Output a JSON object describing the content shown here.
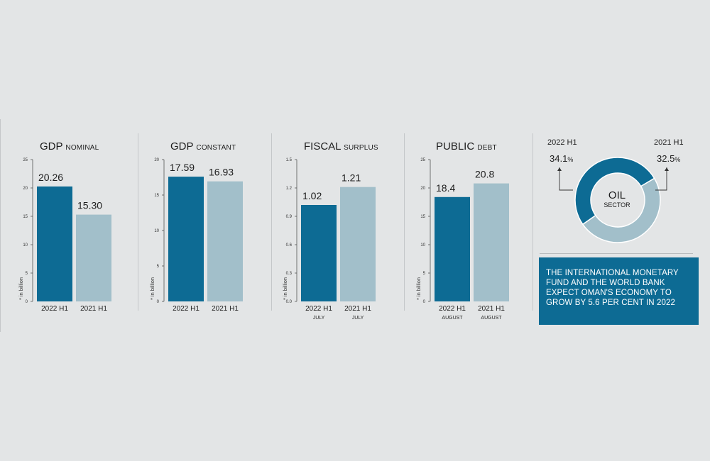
{
  "colors": {
    "primary": "#0d6b94",
    "secondary": "#a2bfca",
    "background": "#e3e5e6",
    "divider": "#c4c7c9"
  },
  "chart_data": [
    {
      "type": "bar",
      "title_main": "GDP",
      "title_small": "NOMINAL",
      "ylabel": "* in billion",
      "ylim": [
        0,
        25
      ],
      "yticks": [
        "0",
        "5",
        "10",
        "15",
        "20",
        "25"
      ],
      "categories": [
        "2022 H1",
        "2021 H1"
      ],
      "sublabels": [
        "",
        ""
      ],
      "values": [
        20.26,
        15.3
      ],
      "value_labels": [
        "20.26",
        "15.30"
      ]
    },
    {
      "type": "bar",
      "title_main": "GDP",
      "title_small": "CONSTANT",
      "ylabel": "* in billion",
      "ylim": [
        0,
        20
      ],
      "yticks": [
        "0",
        "5",
        "10",
        "15",
        "20"
      ],
      "categories": [
        "2022 H1",
        "2021 H1"
      ],
      "sublabels": [
        "",
        ""
      ],
      "values": [
        17.59,
        16.93
      ],
      "value_labels": [
        "17.59",
        "16.93"
      ]
    },
    {
      "type": "bar",
      "title_main": "FISCAL",
      "title_small": "SURPLUS",
      "ylabel": "* in billion",
      "ylim": [
        0,
        1.5
      ],
      "yticks": [
        "0.0",
        "0.3",
        "0.6",
        "0.9",
        "1.2",
        "1.5"
      ],
      "categories": [
        "2022 H1",
        "2021 H1"
      ],
      "sublabels": [
        "JULY",
        "JULY"
      ],
      "values": [
        1.02,
        1.21
      ],
      "value_labels": [
        "1.02",
        "1.21"
      ]
    },
    {
      "type": "bar",
      "title_main": "PUBLIC",
      "title_small": "DEBT",
      "ylabel": "* in billion",
      "ylim": [
        0,
        25
      ],
      "yticks": [
        "0",
        "5",
        "10",
        "15",
        "20",
        "25"
      ],
      "categories": [
        "2022 H1",
        "2021 H1"
      ],
      "sublabels": [
        "AUGUST",
        "AUGUST"
      ],
      "values": [
        18.4,
        20.8
      ],
      "value_labels": [
        "18.4",
        "20.8"
      ]
    },
    {
      "type": "pie",
      "center_line1": "OIL",
      "center_line2": "SECTOR",
      "labels": [
        "2022 H1",
        "2021 H1"
      ],
      "values": [
        34.1,
        32.5
      ],
      "value_numbers": [
        "34.1",
        "32.5"
      ],
      "unit": "%"
    }
  ],
  "note": "THE INTERNATIONAL MONETARY FUND AND THE WORLD BANK EXPECT OMAN'S ECONOMY TO GROW BY 5.6 PER CENT IN 2022"
}
